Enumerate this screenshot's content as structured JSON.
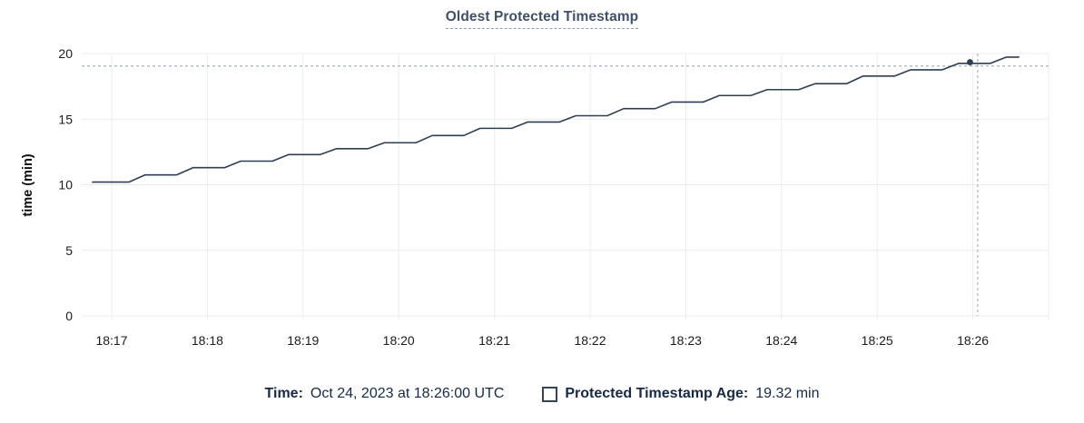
{
  "chart_data": {
    "type": "line",
    "title": "Oldest Protected Timestamp",
    "xlabel": "",
    "ylabel": "time (min)",
    "ylim": [
      0,
      20
    ],
    "y_ticks": [
      0,
      5,
      10,
      15,
      20
    ],
    "x_ticks": [
      {
        "t": 0,
        "label": "18:17"
      },
      {
        "t": 1,
        "label": "18:18"
      },
      {
        "t": 2,
        "label": "18:19"
      },
      {
        "t": 3,
        "label": "18:20"
      },
      {
        "t": 4,
        "label": "18:21"
      },
      {
        "t": 5,
        "label": "18:22"
      },
      {
        "t": 6,
        "label": "18:23"
      },
      {
        "t": 7,
        "label": "18:24"
      },
      {
        "t": 8,
        "label": "18:25"
      },
      {
        "t": 9,
        "label": "18:26"
      }
    ],
    "xlim_minutes_after_1817": [
      -0.31,
      9.79
    ],
    "grid": true,
    "legend_position": "bottom",
    "series": [
      {
        "name": "Protected Timestamp Age",
        "unit": "min",
        "points": [
          [
            -0.2,
            10.2
          ],
          [
            0.18,
            10.2
          ],
          [
            0.35,
            10.75
          ],
          [
            0.68,
            10.75
          ],
          [
            0.85,
            11.3
          ],
          [
            1.18,
            11.3
          ],
          [
            1.35,
            11.8
          ],
          [
            1.68,
            11.8
          ],
          [
            1.85,
            12.3
          ],
          [
            2.18,
            12.3
          ],
          [
            2.35,
            12.75
          ],
          [
            2.68,
            12.75
          ],
          [
            2.85,
            13.2
          ],
          [
            3.18,
            13.2
          ],
          [
            3.35,
            13.75
          ],
          [
            3.68,
            13.75
          ],
          [
            3.85,
            14.3
          ],
          [
            4.18,
            14.3
          ],
          [
            4.35,
            14.78
          ],
          [
            4.68,
            14.78
          ],
          [
            4.85,
            15.26
          ],
          [
            5.18,
            15.26
          ],
          [
            5.35,
            15.8
          ],
          [
            5.68,
            15.8
          ],
          [
            5.85,
            16.3
          ],
          [
            6.18,
            16.3
          ],
          [
            6.35,
            16.8
          ],
          [
            6.68,
            16.8
          ],
          [
            6.85,
            17.25
          ],
          [
            7.18,
            17.25
          ],
          [
            7.35,
            17.7
          ],
          [
            7.68,
            17.7
          ],
          [
            7.85,
            18.28
          ],
          [
            8.18,
            18.28
          ],
          [
            8.35,
            18.76
          ],
          [
            8.68,
            18.76
          ],
          [
            8.85,
            19.25
          ],
          [
            9.18,
            19.25
          ],
          [
            9.35,
            19.73
          ],
          [
            9.48,
            19.73
          ]
        ]
      }
    ],
    "hover_readout": {
      "time": "Oct 24, 2023 at 18:26:00 UTC",
      "value": "19.32 min",
      "crosshair_t": 9.05,
      "crosshair_value": 19.05,
      "marker_t": 8.97,
      "marker_value": 19.34
    }
  },
  "footer": {
    "time_label": "Time:",
    "time_value": "Oct 24, 2023 at 18:26:00 UTC",
    "series_label": "Protected Timestamp Age:",
    "series_value": "19.32 min"
  },
  "icons": {
    "series_checkbox": "unchecked-square-icon"
  },
  "colors": {
    "line": "#2e3e54",
    "marker": "#2e3e54",
    "crosshair": "#a4b4c0",
    "grid": "#ececec",
    "title_text": "#3f506c",
    "title_underline": "#8e9ab0",
    "axis_text": "#1b1b1b",
    "footer_text": "#16294a",
    "checkbox_border": "#31455f",
    "background": "#ffffff"
  }
}
